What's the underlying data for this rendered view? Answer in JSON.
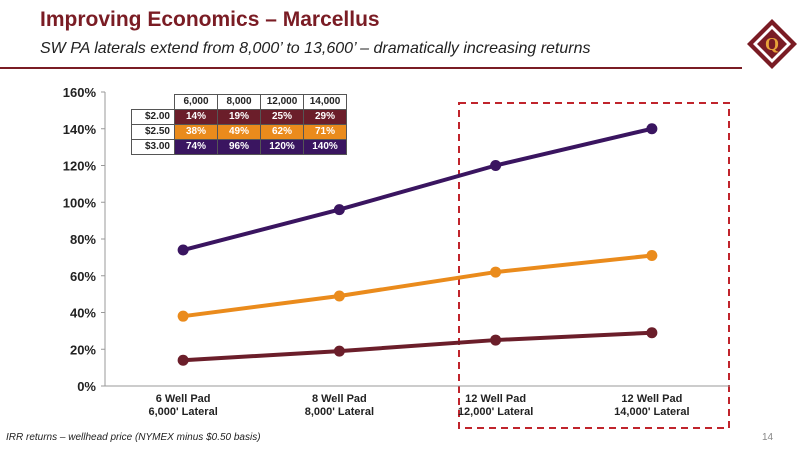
{
  "header": {
    "title": "Improving Economics – Marcellus",
    "subtitle": "SW PA laterals extend from 8,000’ to 13,600’ – dramatically increasing returns"
  },
  "footnote": "IRR returns – wellhead price (NYMEX minus $0.50 basis)",
  "page_number": "14",
  "logo": {
    "icon": "q-logo-icon",
    "letter": "Q"
  },
  "colors": {
    "brand": "#7a1c24",
    "series_200": "#6b1e2a",
    "series_250": "#ea8b1c",
    "series_300": "#3a1560",
    "highlight_box": "#c0242c"
  },
  "table": {
    "columns": [
      "6,000",
      "8,000",
      "12,000",
      "14,000"
    ],
    "rows": [
      {
        "label": "$2.00",
        "values": [
          "14%",
          "19%",
          "25%",
          "29%"
        ],
        "bg": "#6b1e2a",
        "fg": "#ffffff"
      },
      {
        "label": "$2.50",
        "values": [
          "38%",
          "49%",
          "62%",
          "71%"
        ],
        "bg": "#ea8b1c",
        "fg": "#ffffff"
      },
      {
        "label": "$3.00",
        "values": [
          "74%",
          "96%",
          "120%",
          "140%"
        ],
        "bg": "#3a1560",
        "fg": "#ffffff"
      }
    ]
  },
  "chart_data": {
    "type": "line",
    "categories": [
      [
        "6 Well Pad",
        "6,000' Lateral"
      ],
      [
        "8 Well Pad",
        "8,000' Lateral"
      ],
      [
        "12 Well Pad",
        "12,000' Lateral"
      ],
      [
        "12 Well Pad",
        "14,000' Lateral"
      ]
    ],
    "series": [
      {
        "values": [
          14,
          19,
          25,
          29
        ],
        "color": "#6b1e2a"
      },
      {
        "values": [
          38,
          49,
          62,
          71
        ],
        "color": "#ea8b1c"
      },
      {
        "values": [
          74,
          96,
          120,
          140
        ],
        "color": "#3a1560"
      }
    ],
    "ylim": [
      0,
      160
    ],
    "yticks": [
      0,
      20,
      40,
      60,
      80,
      100,
      120,
      140,
      160
    ],
    "ytick_labels": [
      "0%",
      "20%",
      "40%",
      "60%",
      "80%",
      "100%",
      "120%",
      "140%",
      "160%"
    ],
    "grid": false,
    "highlight": "dashed box around last two categories"
  }
}
